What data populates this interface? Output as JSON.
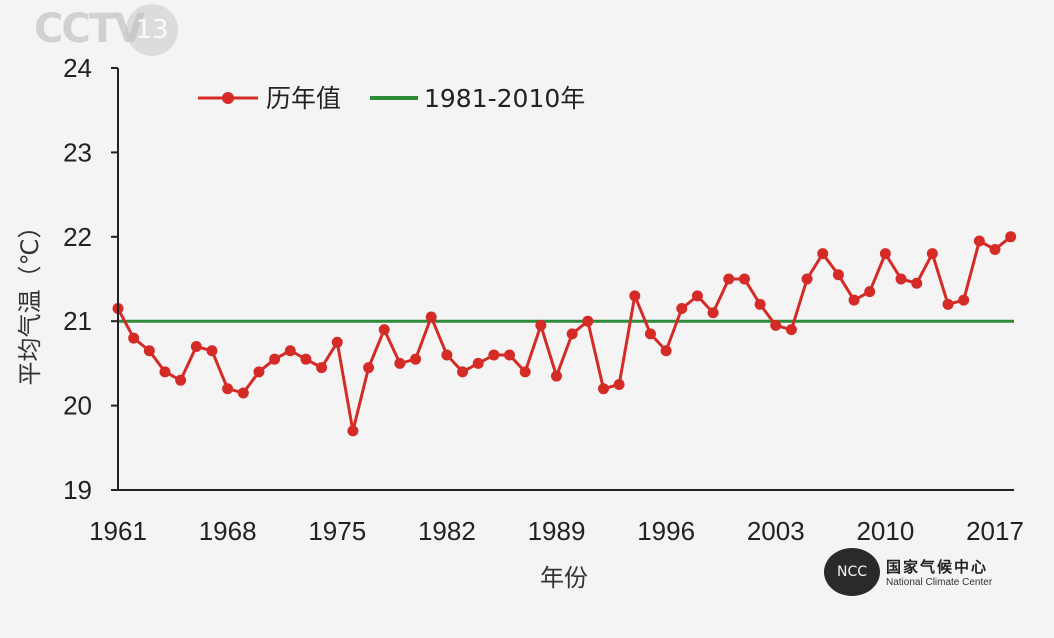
{
  "watermark": {
    "channel": "CCTV",
    "number": "13"
  },
  "logo": {
    "org_cn": "国家气候中心",
    "org_en": "National Climate Center"
  },
  "colors": {
    "series": "#d42b27",
    "baseline": "#2e8b3a",
    "axis": "#222222"
  },
  "chart_data": {
    "type": "line",
    "title": "",
    "xlabel": "年份",
    "ylabel": "平均气温（℃）",
    "ylim": [
      19,
      24
    ],
    "xlim": [
      1961,
      2018
    ],
    "yticks": [
      19,
      20,
      21,
      22,
      23,
      24
    ],
    "xticks": [
      1961,
      1968,
      1975,
      1982,
      1989,
      1996,
      2003,
      2010,
      2017
    ],
    "legend_position": "top-left",
    "series": [
      {
        "name": "历年值",
        "x": [
          1961,
          1962,
          1963,
          1964,
          1965,
          1966,
          1967,
          1968,
          1969,
          1970,
          1971,
          1972,
          1973,
          1974,
          1975,
          1976,
          1977,
          1978,
          1979,
          1980,
          1981,
          1982,
          1983,
          1984,
          1985,
          1986,
          1987,
          1988,
          1989,
          1990,
          1991,
          1992,
          1993,
          1994,
          1995,
          1996,
          1997,
          1998,
          1999,
          2000,
          2001,
          2002,
          2003,
          2004,
          2005,
          2006,
          2007,
          2008,
          2009,
          2010,
          2011,
          2012,
          2013,
          2014,
          2015,
          2016,
          2017,
          2018
        ],
        "y": [
          21.15,
          20.8,
          20.65,
          20.4,
          20.3,
          20.7,
          20.65,
          20.2,
          20.15,
          20.4,
          20.55,
          20.65,
          20.55,
          20.45,
          20.75,
          19.7,
          20.45,
          20.9,
          20.5,
          20.55,
          21.05,
          20.6,
          20.4,
          20.5,
          20.6,
          20.6,
          20.4,
          20.95,
          20.35,
          20.85,
          21.0,
          20.2,
          20.25,
          21.3,
          20.85,
          20.65,
          21.15,
          21.3,
          21.1,
          21.5,
          21.5,
          21.2,
          20.95,
          20.9,
          21.5,
          21.8,
          21.55,
          21.25,
          21.35,
          21.8,
          21.5,
          21.45,
          21.8,
          21.2,
          21.25,
          21.95,
          21.85,
          22.0
        ]
      },
      {
        "name": "1981-2010年",
        "type": "hline",
        "y": 21.0
      }
    ]
  }
}
